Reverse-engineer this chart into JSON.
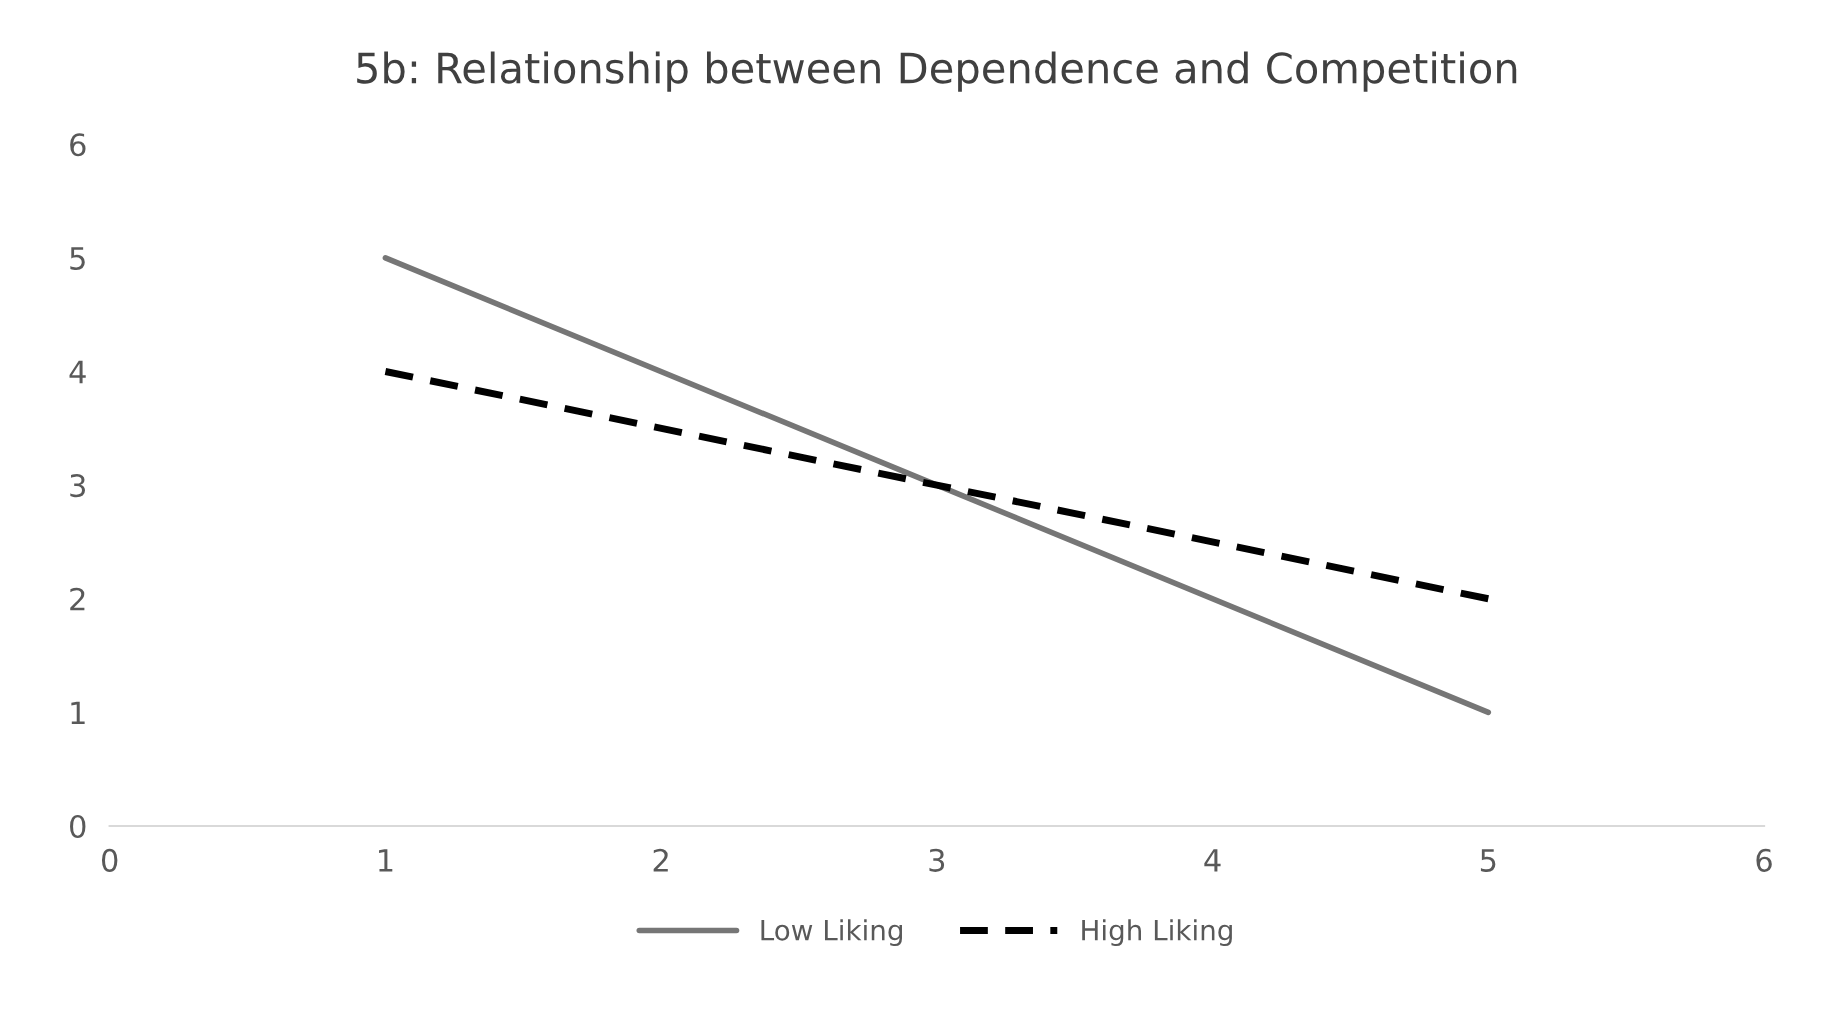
{
  "chart_data": {
    "type": "line",
    "title": "5b: Relationship between Dependence and Competition",
    "x": [
      1,
      3,
      5
    ],
    "series": [
      {
        "name": "Low Liking",
        "color": "#767676",
        "line_style": "solid",
        "values": [
          5,
          3,
          1
        ]
      },
      {
        "name": "High Liking",
        "color": "#000000",
        "line_style": "dashed",
        "values": [
          4,
          3,
          2
        ]
      }
    ],
    "xlim": [
      0,
      6
    ],
    "xticks": [
      0,
      1,
      2,
      3,
      4,
      5,
      6
    ],
    "ylim": [
      0,
      6
    ],
    "yticks": [
      0,
      1,
      2,
      3,
      4,
      5,
      6
    ],
    "grid": false,
    "legend": "bottom",
    "marker": "none"
  }
}
